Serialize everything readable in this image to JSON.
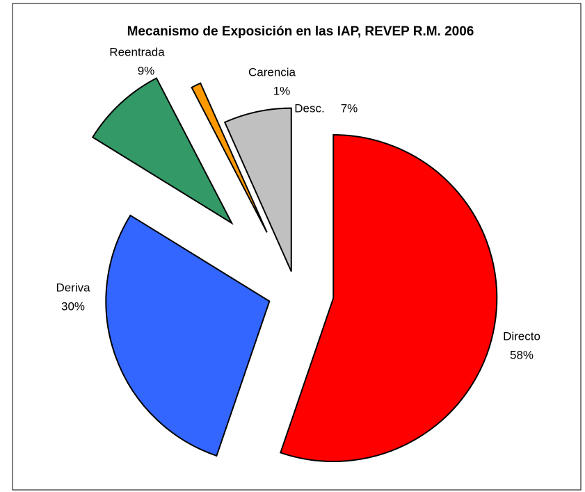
{
  "chart_data": {
    "type": "pie",
    "title": "Mecanismo de Exposición en las IAP, REVEP R.M. 2006",
    "categories": [
      "Directo",
      "Deriva",
      "Reentrada",
      "Carencia",
      "Desc."
    ],
    "values": [
      58,
      30,
      9,
      1,
      7
    ],
    "value_labels": [
      "58%",
      "30%",
      "9%",
      "1%",
      "7%"
    ],
    "colors": [
      "#ff0000",
      "#3366ff",
      "#339966",
      "#ff9900",
      "#c0c0c0"
    ]
  }
}
